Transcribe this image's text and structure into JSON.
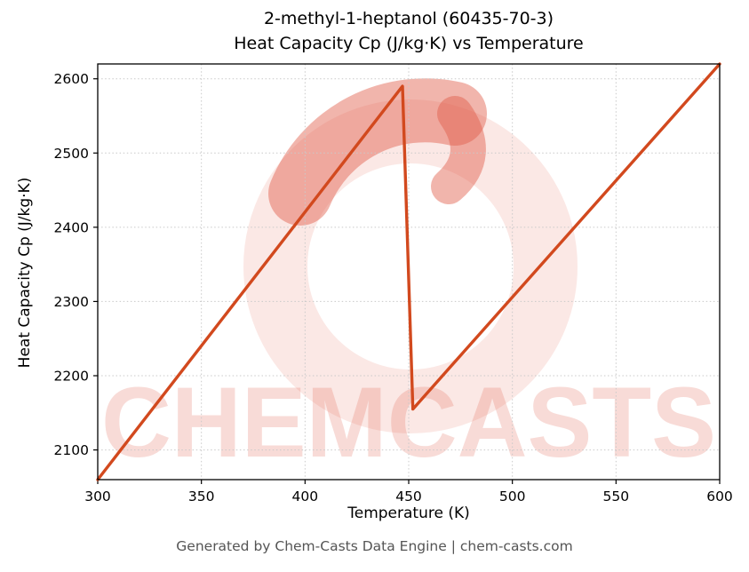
{
  "title_line1": "2-methyl-1-heptanol (60435-70-3)",
  "title_line2": "Heat Capacity Cp (J/kg·K) vs Temperature",
  "footer": "Generated by Chem-Casts Data Engine | chem-casts.com",
  "watermark": {
    "text": "CHEMCASTS",
    "color": "#e05a48",
    "text_opacity": 0.22,
    "ring_opacity": 0.14,
    "swirl_opacity": 0.45
  },
  "chart_data": {
    "type": "line",
    "title": "2-methyl-1-heptanol (60435-70-3) — Heat Capacity Cp (J/kg·K) vs Temperature",
    "xlabel": "Temperature (K)",
    "ylabel": "Heat Capacity Cp (J/kg·K)",
    "x": [
      300,
      447,
      452,
      600
    ],
    "y": [
      2060,
      2590,
      2155,
      2620
    ],
    "xlim": [
      300,
      600
    ],
    "ylim": [
      2060,
      2620
    ],
    "xticks": [
      300,
      350,
      400,
      450,
      500,
      550,
      600
    ],
    "yticks": [
      2100,
      2200,
      2300,
      2400,
      2500,
      2600
    ],
    "grid": true,
    "legend": false,
    "line_color": "#d2491e",
    "grid_color": "#c9c9c9",
    "spine_color": "#000000"
  }
}
